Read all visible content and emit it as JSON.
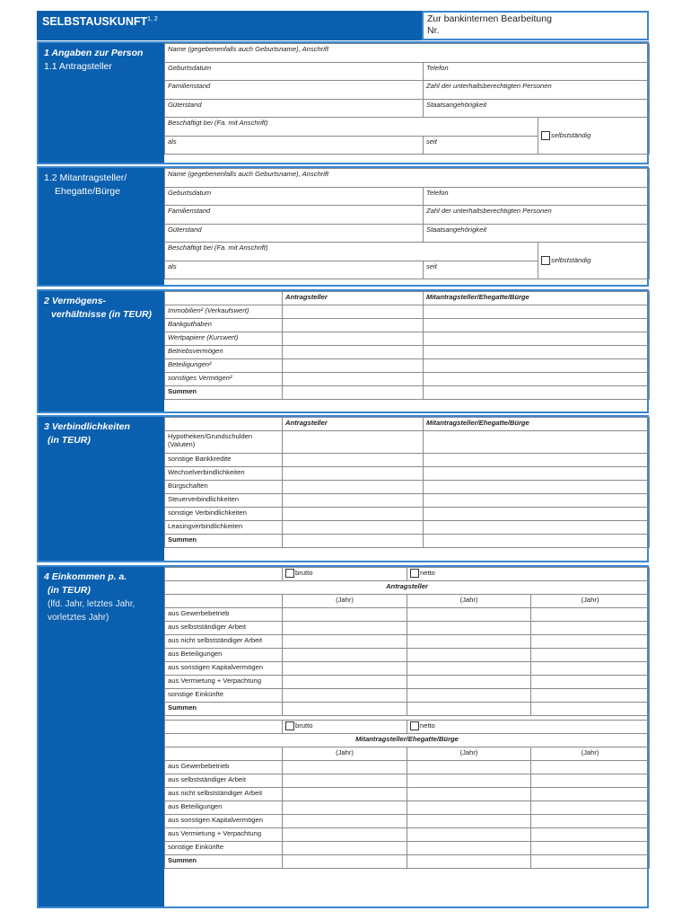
{
  "header": {
    "title": "SELBSTAUSKUNFT",
    "title_sup": "1, 2",
    "bank_line1": "Zur bankinternen Bearbeitung",
    "bank_line2": "Nr."
  },
  "colors": {
    "brand_blue": "#0a5fae",
    "border_blue": "#3a86cf"
  },
  "section1": {
    "heading": "1 Angaben zur Person",
    "sub": "1.1 Antragsteller",
    "fields": {
      "name": "Name (gegebenenfalls auch Geburtsname), Anschrift",
      "birth": "Geburtsdatum",
      "phone": "Telefon",
      "marital": "Familienstand",
      "dependents": "Zahl der unterhaltsberechtigten Personen",
      "property_regime": "Güterstand",
      "nationality": "Staatsangehörigkeit",
      "employer": "Beschäftigt bei (Fa. mit Anschrift)",
      "self_employed": "selbstständig",
      "as": "als",
      "since": "seit"
    }
  },
  "section12": {
    "sub_line1": "1.2 Mitantragsteller/",
    "sub_line2": "Ehegatte/Bürge",
    "fields": {
      "name": "Name (gegebenenfalls auch Geburtsname), Anschrift",
      "birth": "Geburtsdatum",
      "phone": "Telefon",
      "marital": "Familienstand",
      "dependents": "Zahl der unterhaltsberechtigten Personen",
      "property_regime": "Güterstand",
      "nationality": "Staatsangehörigkeit",
      "employer": "Beschäftigt bei (Fa. mit Anschrift)",
      "self_employed": "selbstständig",
      "as": "als",
      "since": "seit"
    }
  },
  "section2": {
    "heading_line1": "2 Vermögens-",
    "heading_line2": "verhältnisse (in TEUR)",
    "columns": [
      "",
      "Antragsteller",
      "Mitantragsteller/Ehegatte/Bürge"
    ],
    "rows": [
      "Immobilien² (Verkaufswert)",
      "Bankguthaben",
      "Wertpapiere (Kurswert)",
      "Betriebsvermögen",
      "Beteiligungen²",
      "sonstiges Vermögen²",
      "Summen"
    ]
  },
  "section3": {
    "heading_line1": "3 Verbindlichkeiten",
    "heading_line2": "(in TEUR)",
    "columns": [
      "",
      "Antragsteller",
      "Mitantragsteller/Ehegatte/Bürge"
    ],
    "rows": [
      "Hypotheken/Grundschulden (Valuten)",
      "sonstige Bankkredite",
      "Wechselverbindlichkeiten",
      "Bürgschaften",
      "Steuerverbindlichkeiten",
      "sonstige Verbindlichkeiten",
      "Leasingverbindlichkeiten",
      "Summen"
    ]
  },
  "section4": {
    "heading_line1": "4 Einkommen p. a.",
    "heading_line2": "(in TEUR)",
    "note": "(lfd. Jahr, letztes Jahr, vorletztes Jahr)",
    "gross": "brutto",
    "net": "netto",
    "year": "(Jahr)",
    "blocks": [
      {
        "title": "Antragsteller"
      },
      {
        "title": "Mitantragsteller/Ehegatte/Bürge"
      }
    ],
    "rows": [
      "aus Gewerbebetrieb",
      "aus selbstständiger Arbeit",
      "aus nicht selbstständiger Arbeit",
      "aus Beteiligungen",
      "aus sonstigen Kapitalvermögen",
      "aus Vermietung + Verpachtung",
      "sonstige Einkünfte",
      "Summen"
    ]
  }
}
